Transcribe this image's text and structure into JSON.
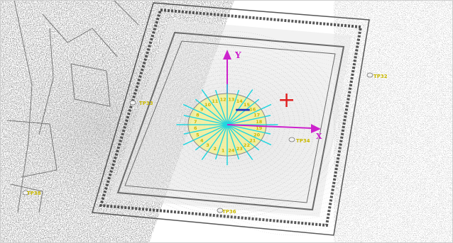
{
  "axes": {
    "y_label": "Y",
    "x_label": "X",
    "plus_sign": "+",
    "minus_sign": "—"
  },
  "station_labels": [
    "TP33",
    "TP32",
    "TP34",
    "TP36",
    "TP38"
  ],
  "ring_labels": [
    "13",
    "14",
    "15",
    "16",
    "17",
    "18",
    "19",
    "20",
    "21",
    "22",
    "23",
    "24",
    "1",
    "2",
    "3",
    "4",
    "5",
    "6",
    "7",
    "8",
    "9",
    "10",
    "11",
    "12"
  ],
  "colors": {
    "axis": "#cc22cc",
    "rays": "#22d6e0",
    "circle_fill": "#f4f08c",
    "label": "#c9b800",
    "plus": "#e02020",
    "minus": "#2233bb"
  }
}
